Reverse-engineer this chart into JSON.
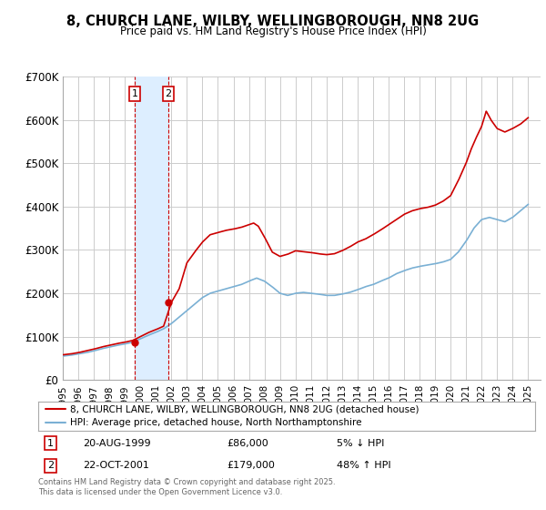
{
  "title": "8, CHURCH LANE, WILBY, WELLINGBOROUGH, NN8 2UG",
  "subtitle": "Price paid vs. HM Land Registry's House Price Index (HPI)",
  "ylim": [
    0,
    700000
  ],
  "yticks": [
    0,
    100000,
    200000,
    300000,
    400000,
    500000,
    600000,
    700000
  ],
  "ytick_labels": [
    "£0",
    "£100K",
    "£200K",
    "£300K",
    "£400K",
    "£500K",
    "£600K",
    "£700K"
  ],
  "xlim_start": 1995.0,
  "xlim_end": 2025.8,
  "sale1_year": 1999.637,
  "sale1_price": 86000,
  "sale1_label": "1",
  "sale1_date": "20-AUG-1999",
  "sale1_pct": "5% ↓ HPI",
  "sale2_year": 2001.81,
  "sale2_price": 179000,
  "sale2_label": "2",
  "sale2_date": "22-OCT-2001",
  "sale2_pct": "48% ↑ HPI",
  "red_line_color": "#cc0000",
  "blue_line_color": "#7ab0d4",
  "shade_color": "#ddeeff",
  "grid_color": "#cccccc",
  "background_color": "#ffffff",
  "legend1_text": "8, CHURCH LANE, WILBY, WELLINGBOROUGH, NN8 2UG (detached house)",
  "legend2_text": "HPI: Average price, detached house, North Northamptonshire",
  "footer": "Contains HM Land Registry data © Crown copyright and database right 2025.\nThis data is licensed under the Open Government Licence v3.0.",
  "hpi_years": [
    1995.0,
    1995.5,
    1996.0,
    1996.5,
    1997.0,
    1997.5,
    1998.0,
    1998.5,
    1999.0,
    1999.5,
    2000.0,
    2000.5,
    2001.0,
    2001.5,
    2002.0,
    2002.5,
    2003.0,
    2003.5,
    2004.0,
    2004.5,
    2005.0,
    2005.5,
    2006.0,
    2006.5,
    2007.0,
    2007.5,
    2008.0,
    2008.5,
    2009.0,
    2009.5,
    2010.0,
    2010.5,
    2011.0,
    2011.5,
    2012.0,
    2012.5,
    2013.0,
    2013.5,
    2014.0,
    2014.5,
    2015.0,
    2015.5,
    2016.0,
    2016.5,
    2017.0,
    2017.5,
    2018.0,
    2018.5,
    2019.0,
    2019.5,
    2020.0,
    2020.5,
    2021.0,
    2021.5,
    2022.0,
    2022.5,
    2023.0,
    2023.5,
    2024.0,
    2024.5,
    2025.0
  ],
  "hpi_values": [
    55000,
    57000,
    60000,
    63000,
    67000,
    72000,
    76000,
    80000,
    83000,
    87000,
    95000,
    103000,
    110000,
    118000,
    130000,
    145000,
    160000,
    175000,
    190000,
    200000,
    205000,
    210000,
    215000,
    220000,
    228000,
    235000,
    228000,
    215000,
    200000,
    195000,
    200000,
    202000,
    200000,
    198000,
    195000,
    195000,
    198000,
    202000,
    208000,
    215000,
    220000,
    228000,
    235000,
    245000,
    252000,
    258000,
    262000,
    265000,
    268000,
    272000,
    278000,
    295000,
    320000,
    350000,
    370000,
    375000,
    370000,
    365000,
    375000,
    390000,
    405000
  ],
  "red_years": [
    1995.0,
    1995.5,
    1996.0,
    1996.5,
    1997.0,
    1997.5,
    1998.0,
    1998.5,
    1999.0,
    1999.5,
    2000.0,
    2000.5,
    2001.0,
    2001.5,
    2002.0,
    2002.5,
    2003.0,
    2003.5,
    2004.0,
    2004.5,
    2005.0,
    2005.5,
    2006.0,
    2006.5,
    2007.0,
    2007.3,
    2007.6,
    2008.0,
    2008.5,
    2009.0,
    2009.5,
    2010.0,
    2010.5,
    2011.0,
    2011.5,
    2012.0,
    2012.5,
    2013.0,
    2013.5,
    2014.0,
    2014.5,
    2015.0,
    2015.5,
    2016.0,
    2016.5,
    2017.0,
    2017.5,
    2018.0,
    2018.5,
    2019.0,
    2019.5,
    2020.0,
    2020.5,
    2021.0,
    2021.3,
    2021.6,
    2022.0,
    2022.3,
    2022.6,
    2023.0,
    2023.5,
    2024.0,
    2024.5,
    2025.0
  ],
  "red_values": [
    58000,
    60000,
    63000,
    67000,
    71000,
    76000,
    80000,
    84000,
    87000,
    91000,
    100000,
    109000,
    116000,
    124000,
    179000,
    210000,
    270000,
    295000,
    318000,
    335000,
    340000,
    345000,
    348000,
    352000,
    358000,
    362000,
    355000,
    330000,
    295000,
    285000,
    290000,
    298000,
    296000,
    294000,
    291000,
    289000,
    291000,
    298000,
    307000,
    318000,
    325000,
    335000,
    346000,
    358000,
    370000,
    382000,
    390000,
    395000,
    398000,
    403000,
    412000,
    425000,
    460000,
    500000,
    530000,
    555000,
    585000,
    620000,
    600000,
    580000,
    572000,
    580000,
    590000,
    605000
  ]
}
